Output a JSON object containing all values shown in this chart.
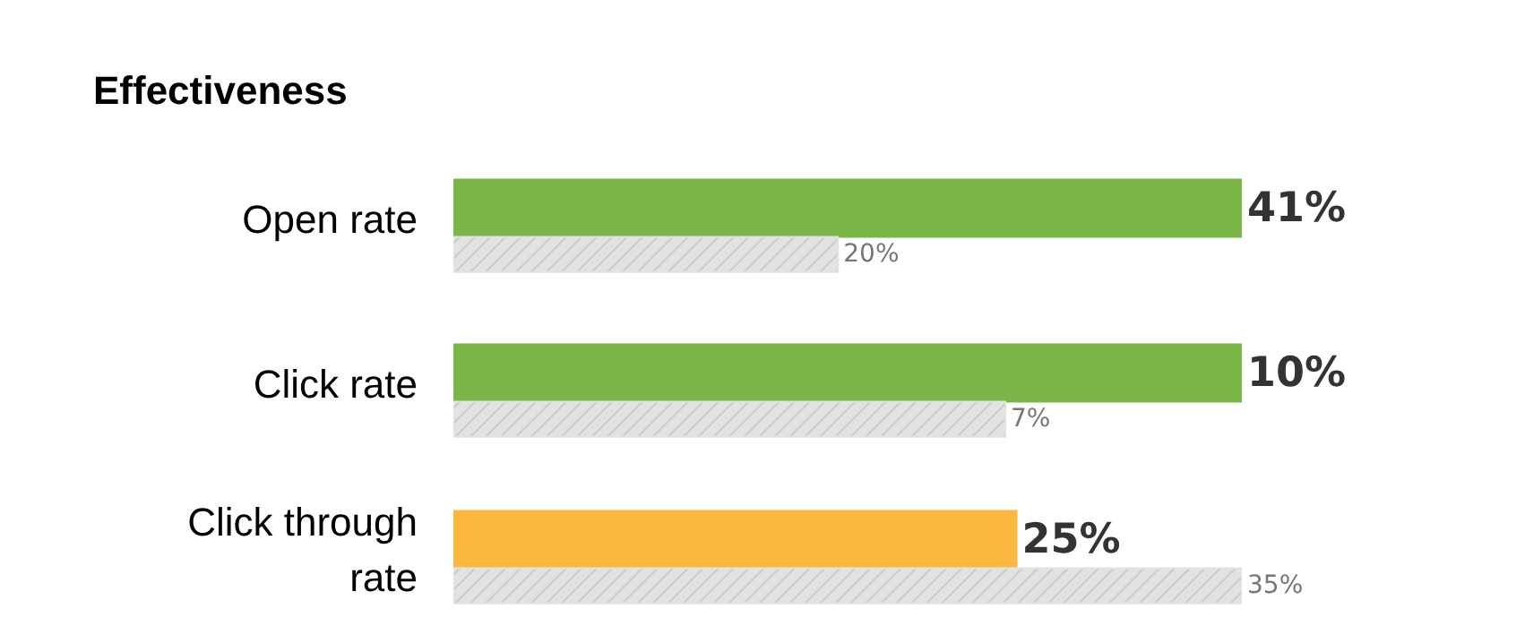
{
  "chart_data": [
    {
      "type": "bar",
      "orientation": "horizontal",
      "title": "Effectiveness",
      "categories": [
        "Open rate"
      ],
      "data_labels": true,
      "legend": false,
      "series": [
        {
          "color": "#7ab648",
          "values": [
            41
          ],
          "value_labels": [
            "41%"
          ]
        },
        {
          "color": "#e2e2e2",
          "values": [
            20
          ],
          "value_labels": [
            "20%"
          ]
        }
      ]
    },
    {
      "type": "bar",
      "orientation": "horizontal",
      "categories": [
        "Click rate"
      ],
      "data_labels": true,
      "legend": false,
      "series": [
        {
          "color": "#7ab648",
          "values": [
            10
          ],
          "value_labels": [
            "10%"
          ]
        },
        {
          "color": "#e2e2e2",
          "values": [
            7
          ],
          "value_labels": [
            "7%"
          ]
        }
      ]
    },
    {
      "type": "bar",
      "orientation": "horizontal",
      "categories": [
        "Click through rate"
      ],
      "data_labels": true,
      "legend": false,
      "series": [
        {
          "color": "#fbb840",
          "values": [
            25
          ],
          "value_labels": [
            "25%"
          ]
        },
        {
          "color": "#e2e2e2",
          "values": [
            35
          ],
          "value_labels": [
            "35%"
          ]
        }
      ]
    }
  ]
}
